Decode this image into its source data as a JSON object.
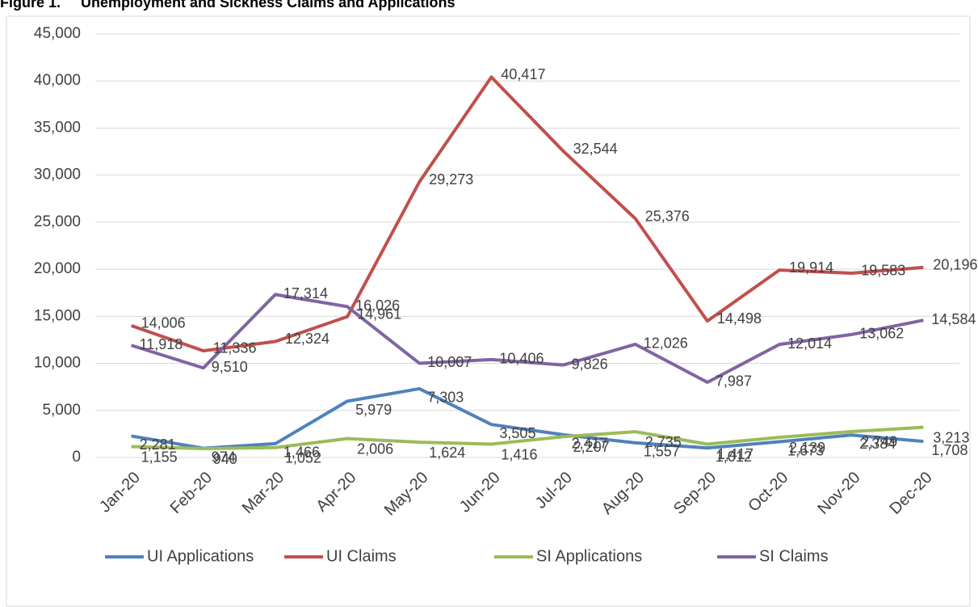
{
  "chart_data": {
    "type": "line",
    "title": "Figure 1.     Unemployment and Sickness Claims and Applications",
    "categories": [
      "Jan-20",
      "Feb-20",
      "Mar-20",
      "Apr-20",
      "May-20",
      "Jun-20",
      "Jul-20",
      "Aug-20",
      "Sep-20",
      "Oct-20",
      "Nov-20",
      "Dec-20"
    ],
    "series": [
      {
        "name": "UI Applications",
        "color": "#4f81bd",
        "values": [
          2281,
          974,
          1466,
          5979,
          7303,
          3505,
          2417,
          1557,
          1012,
          1673,
          2384,
          1708
        ],
        "value_labels": [
          "2,281",
          "974",
          "1,466",
          "5,979",
          "7,303",
          "3,505",
          "2,417",
          "1,557",
          "1,012",
          "1,673",
          "2,384",
          "1,708"
        ]
      },
      {
        "name": "UI Claims",
        "color": "#c0504d",
        "values": [
          14006,
          11336,
          12324,
          14961,
          29273,
          40417,
          32544,
          25376,
          14498,
          19914,
          19583,
          20196
        ],
        "value_labels": [
          "14,006",
          "11,336",
          "12,324",
          "14,961",
          "29,273",
          "40,417",
          "32,544",
          "25,376",
          "14,498",
          "19,914",
          "19,583",
          "20,196"
        ]
      },
      {
        "name": "SI Applications",
        "color": "#9bbb59",
        "values": [
          1155,
          940,
          1052,
          2006,
          1624,
          1416,
          2207,
          2735,
          1417,
          2139,
          2749,
          3213
        ],
        "value_labels": [
          "1,155",
          "940",
          "1,052",
          "2,006",
          "1,624",
          "1,416",
          "2,207",
          "2,735",
          "1,417",
          "2,139",
          "2,749",
          "3,213"
        ]
      },
      {
        "name": "SI Claims",
        "color": "#8064a2",
        "values": [
          11918,
          9510,
          17314,
          16026,
          10007,
          10406,
          9826,
          12026,
          7987,
          12014,
          13062,
          14584
        ],
        "value_labels": [
          "11,918",
          "9,510",
          "17,314",
          "16,026",
          "10,007",
          "10,406",
          "9,826",
          "12,026",
          "7,987",
          "12,014",
          "13,062",
          "14,584"
        ]
      }
    ],
    "ylim": [
      0,
      45000
    ],
    "yticks": [
      0,
      {
        "value": 5000,
        "label": "5,000"
      },
      {
        "value": 10000,
        "label": "10,000"
      },
      {
        "value": 15000,
        "label": "15,000"
      },
      {
        "value": 20000,
        "label": "20,000"
      },
      {
        "value": 25000,
        "label": "25,000"
      },
      {
        "value": 30000,
        "label": "30,000"
      },
      {
        "value": 35000,
        "label": "35,000"
      },
      {
        "value": 40000,
        "label": "40,000"
      },
      {
        "value": 45000,
        "label": "45,000"
      }
    ],
    "grid": true,
    "legend": "bottom"
  }
}
